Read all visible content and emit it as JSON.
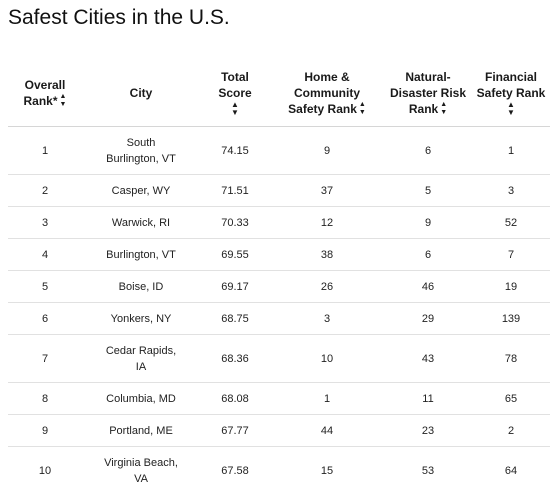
{
  "title": "Safest Cities in the U.S.",
  "table": {
    "headers": [
      {
        "label": "Overall Rank*",
        "sortable": true
      },
      {
        "label": "City",
        "sortable": false
      },
      {
        "label": "Total Score",
        "sortable": true
      },
      {
        "label": "Home & Community Safety Rank",
        "sortable": true
      },
      {
        "label": "Natural-Disaster Risk Rank",
        "sortable": true
      },
      {
        "label": "Financial Safety Rank",
        "sortable": true
      }
    ],
    "rows": [
      {
        "rank": "1",
        "city": "South Burlington, VT",
        "score": "74.15",
        "home": "9",
        "disaster": "6",
        "financial": "1"
      },
      {
        "rank": "2",
        "city": "Casper, WY",
        "score": "71.51",
        "home": "37",
        "disaster": "5",
        "financial": "3"
      },
      {
        "rank": "3",
        "city": "Warwick, RI",
        "score": "70.33",
        "home": "12",
        "disaster": "9",
        "financial": "52"
      },
      {
        "rank": "4",
        "city": "Burlington, VT",
        "score": "69.55",
        "home": "38",
        "disaster": "6",
        "financial": "7"
      },
      {
        "rank": "5",
        "city": "Boise, ID",
        "score": "69.17",
        "home": "26",
        "disaster": "46",
        "financial": "19"
      },
      {
        "rank": "6",
        "city": "Yonkers, NY",
        "score": "68.75",
        "home": "3",
        "disaster": "29",
        "financial": "139"
      },
      {
        "rank": "7",
        "city": "Cedar Rapids, IA",
        "score": "68.36",
        "home": "10",
        "disaster": "43",
        "financial": "78"
      },
      {
        "rank": "8",
        "city": "Columbia, MD",
        "score": "68.08",
        "home": "1",
        "disaster": "11",
        "financial": "65"
      },
      {
        "rank": "9",
        "city": "Portland, ME",
        "score": "67.77",
        "home": "44",
        "disaster": "23",
        "financial": "2"
      },
      {
        "rank": "10",
        "city": "Virginia Beach, VA",
        "score": "67.58",
        "home": "15",
        "disaster": "53",
        "financial": "64"
      }
    ]
  },
  "icons": {
    "sort": "sort-up-down-icon"
  }
}
